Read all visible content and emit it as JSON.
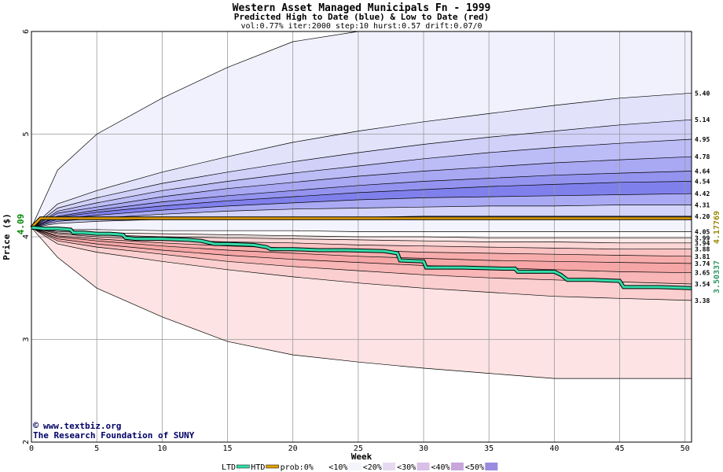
{
  "chart_data": {
    "type": "area",
    "title": "Western Asset Managed Municipals Fn - 1999",
    "subtitle": "Predicted High to Date (blue) &  Low to Date (red)",
    "params": "vol:0.77% iter:2000 step:10 hurst:0.57 drift:0.07/0",
    "xlabel": "Week",
    "ylabel": "Price ($)",
    "xlim": [
      0,
      50.5
    ],
    "ylim": [
      2,
      6
    ],
    "xticks": [
      0,
      5,
      10,
      15,
      20,
      25,
      30,
      35,
      40,
      45,
      50
    ],
    "yticks": [
      2,
      3,
      4,
      5,
      6
    ],
    "grid": true,
    "start_price": 4.09,
    "start_label": "4.09",
    "x": [
      0,
      2,
      5,
      10,
      15,
      20,
      25,
      30,
      35,
      40,
      45,
      50.5
    ],
    "envelopes": [
      {
        "name": "high_outer",
        "end_label": "",
        "values": [
          4.09,
          4.65,
          5.0,
          5.35,
          5.65,
          5.9,
          6.0,
          6.0,
          6.0,
          6.0,
          6.0,
          6.0
        ]
      },
      {
        "name": "h1",
        "end_label": "5.40",
        "values": [
          4.09,
          4.32,
          4.45,
          4.63,
          4.78,
          4.92,
          5.03,
          5.12,
          5.2,
          5.28,
          5.35,
          5.4
        ]
      },
      {
        "name": "h2",
        "end_label": "5.14",
        "values": [
          4.09,
          4.28,
          4.38,
          4.52,
          4.63,
          4.73,
          4.82,
          4.9,
          4.97,
          5.03,
          5.09,
          5.14
        ]
      },
      {
        "name": "h3",
        "end_label": "4.95",
        "values": [
          4.09,
          4.25,
          4.33,
          4.45,
          4.54,
          4.62,
          4.69,
          4.76,
          4.82,
          4.87,
          4.91,
          4.95
        ]
      },
      {
        "name": "h4",
        "end_label": "4.78",
        "values": [
          4.09,
          4.23,
          4.29,
          4.39,
          4.47,
          4.53,
          4.59,
          4.64,
          4.68,
          4.72,
          4.75,
          4.78
        ]
      },
      {
        "name": "h5",
        "end_label": "4.64",
        "values": [
          4.09,
          4.2,
          4.26,
          4.34,
          4.4,
          4.45,
          4.5,
          4.54,
          4.57,
          4.6,
          4.62,
          4.64
        ]
      },
      {
        "name": "h6",
        "end_label": "4.54",
        "values": [
          4.09,
          4.19,
          4.24,
          4.3,
          4.35,
          4.39,
          4.43,
          4.46,
          4.49,
          4.51,
          4.53,
          4.54
        ]
      },
      {
        "name": "h7",
        "end_label": "4.42",
        "values": [
          4.09,
          4.17,
          4.21,
          4.26,
          4.3,
          4.33,
          4.36,
          4.38,
          4.39,
          4.4,
          4.41,
          4.42
        ]
      },
      {
        "name": "h8",
        "end_label": "4.31",
        "values": [
          4.09,
          4.15,
          4.18,
          4.22,
          4.25,
          4.27,
          4.28,
          4.29,
          4.3,
          4.3,
          4.31,
          4.31
        ]
      },
      {
        "name": "h9",
        "end_label": "4.20",
        "values": [
          4.09,
          4.13,
          4.15,
          4.17,
          4.18,
          4.19,
          4.19,
          4.2,
          4.2,
          4.2,
          4.2,
          4.2
        ]
      },
      {
        "name": "l0",
        "end_label": "4.05",
        "values": [
          4.09,
          4.07,
          4.07,
          4.06,
          4.06,
          4.06,
          4.05,
          4.05,
          4.05,
          4.05,
          4.05,
          4.05
        ]
      },
      {
        "name": "l1",
        "end_label": "3.99",
        "values": [
          4.09,
          4.05,
          4.04,
          4.03,
          4.02,
          4.01,
          4.0,
          4.0,
          3.99,
          3.99,
          3.99,
          3.99
        ]
      },
      {
        "name": "l2",
        "end_label": "3.94",
        "values": [
          4.09,
          4.04,
          4.02,
          4.0,
          3.99,
          3.98,
          3.97,
          3.96,
          3.95,
          3.95,
          3.94,
          3.94
        ]
      },
      {
        "name": "l3",
        "end_label": "3.88",
        "values": [
          4.09,
          4.03,
          4.0,
          3.97,
          3.95,
          3.94,
          3.92,
          3.91,
          3.9,
          3.89,
          3.88,
          3.88
        ]
      },
      {
        "name": "l4",
        "end_label": "3.81",
        "values": [
          4.09,
          4.01,
          3.98,
          3.94,
          3.91,
          3.89,
          3.87,
          3.85,
          3.84,
          3.83,
          3.82,
          3.81
        ]
      },
      {
        "name": "l5",
        "end_label": "3.74",
        "values": [
          4.09,
          4.0,
          3.96,
          3.91,
          3.87,
          3.84,
          3.81,
          3.79,
          3.77,
          3.76,
          3.75,
          3.74
        ]
      },
      {
        "name": "l6",
        "end_label": "3.65",
        "values": [
          4.09,
          3.98,
          3.93,
          3.87,
          3.82,
          3.78,
          3.75,
          3.72,
          3.7,
          3.68,
          3.66,
          3.65
        ]
      },
      {
        "name": "l7",
        "end_label": "3.54",
        "values": [
          4.09,
          3.96,
          3.9,
          3.83,
          3.76,
          3.71,
          3.67,
          3.63,
          3.6,
          3.58,
          3.56,
          3.54
        ]
      },
      {
        "name": "l8",
        "end_label": "3.38",
        "values": [
          4.09,
          3.93,
          3.85,
          3.76,
          3.68,
          3.61,
          3.55,
          3.5,
          3.46,
          3.42,
          3.4,
          3.38
        ]
      },
      {
        "name": "low_outer",
        "end_label": "",
        "values": [
          4.09,
          3.8,
          3.5,
          3.22,
          2.98,
          2.85,
          2.78,
          2.72,
          2.67,
          2.62,
          2.62,
          2.62
        ]
      }
    ],
    "ltd_label": "3.50337",
    "ltd_series": {
      "x": [
        0,
        1,
        2,
        3,
        3.2,
        4,
        5,
        6,
        7,
        7.2,
        8,
        10,
        12,
        13,
        14,
        15,
        17,
        18,
        18.3,
        20,
        22,
        24,
        27,
        28,
        28.2,
        30,
        30.2,
        33,
        36,
        37,
        37.2,
        40,
        40.5,
        41,
        43,
        45,
        45.3,
        48,
        50.5
      ],
      "y": [
        4.09,
        4.08,
        4.08,
        4.07,
        4.04,
        4.04,
        4.03,
        4.03,
        4.02,
        3.99,
        3.98,
        3.98,
        3.97,
        3.96,
        3.93,
        3.93,
        3.92,
        3.9,
        3.88,
        3.88,
        3.87,
        3.87,
        3.86,
        3.84,
        3.77,
        3.76,
        3.7,
        3.7,
        3.69,
        3.69,
        3.66,
        3.66,
        3.63,
        3.58,
        3.58,
        3.57,
        3.51,
        3.51,
        3.5
      ]
    },
    "htd_label": "4.17769",
    "htd_series": {
      "x": [
        0,
        0.7,
        50.5
      ],
      "y": [
        4.09,
        4.18,
        4.18
      ]
    },
    "legend": [
      "LTD",
      "HTD",
      "prob:0%",
      "<10%",
      "<20%",
      "<30%",
      "<40%",
      "<50%"
    ],
    "colors": {
      "blue_bands": [
        "#f1f1fd",
        "#e2e2fb",
        "#d0d0f9",
        "#bcbcf6",
        "#a8a8f3",
        "#9494f0",
        "#8080ed",
        "#aaaaf4",
        "#d4d4fb",
        "#f3f3fe"
      ],
      "red_bands": [
        "#fffdfd",
        "#fee9e9",
        "#fcd5d5",
        "#fac1c1",
        "#f8adad",
        "#f6a6a6",
        "#f8b6b6",
        "#fbcfcf",
        "#fde3e3",
        "#fef1f1"
      ],
      "ltd_line": "#33ddaa",
      "htd_line": "#e0a000",
      "htd_label_color": "#998800",
      "ltd_label_color": "#339966",
      "start_label_color": "#008800"
    },
    "credit": [
      "www.textbiz.org",
      "The Research Foundation of SUNY"
    ]
  }
}
